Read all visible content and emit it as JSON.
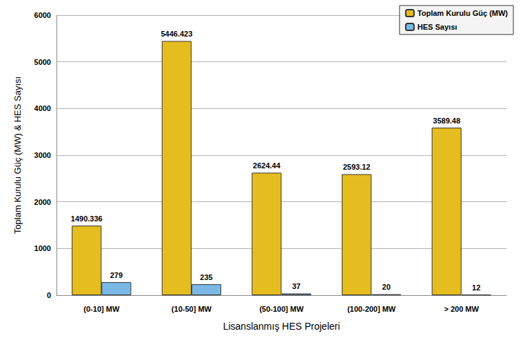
{
  "chart_data": {
    "type": "bar",
    "x_label": "Lisanslanmış HES Projeleri",
    "y_label": "Toplam Kurulu Güç (MW) & HES Sayısı",
    "categories": [
      "(0-10] MW",
      "(10-50] MW",
      "(50-100] MW",
      "(100-200] MW",
      "> 200 MW"
    ],
    "series": [
      {
        "name": "Toplam Kurulu Güç (MW)",
        "color": "#e6bd1f",
        "values": [
          1490.336,
          5446.423,
          2624.44,
          2593.12,
          3589.48
        ]
      },
      {
        "name": "HES Sayısı",
        "color": "#7ab9e6",
        "values": [
          279,
          235,
          37,
          20,
          12
        ]
      }
    ],
    "ylim": [
      0,
      6000
    ],
    "yticks": [
      0,
      1000,
      2000,
      3000,
      4000,
      5000,
      6000
    ],
    "grid": true,
    "legend": "top-right",
    "data_labels": true
  }
}
